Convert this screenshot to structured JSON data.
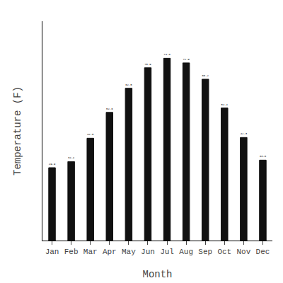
{
  "chart_data": {
    "type": "bar",
    "categories": [
      "Jan",
      "Feb",
      "Mar",
      "Apr",
      "May",
      "Jun",
      "Jul",
      "Aug",
      "Sep",
      "Oct",
      "Nov",
      "Dec"
    ],
    "values": [
      29.9,
      32.4,
      42.0,
      52.6,
      62.5,
      70.9,
      74.8,
      72.9,
      66.2,
      54.4,
      42.3,
      33.0
    ],
    "value_labels": [
      "29.9",
      "32.4",
      "42.0",
      "52.6",
      "62.5",
      "70.9",
      "74.8",
      "72.9",
      "66.2",
      "54.4",
      "42.3",
      "33.0"
    ],
    "color": "#111111",
    "xlabel": "Month",
    "ylabel": "Temperature (F)",
    "ylim": [
      0,
      90
    ],
    "yticks": [],
    "tick_labels": "x",
    "data_labels": true,
    "grid": false
  }
}
